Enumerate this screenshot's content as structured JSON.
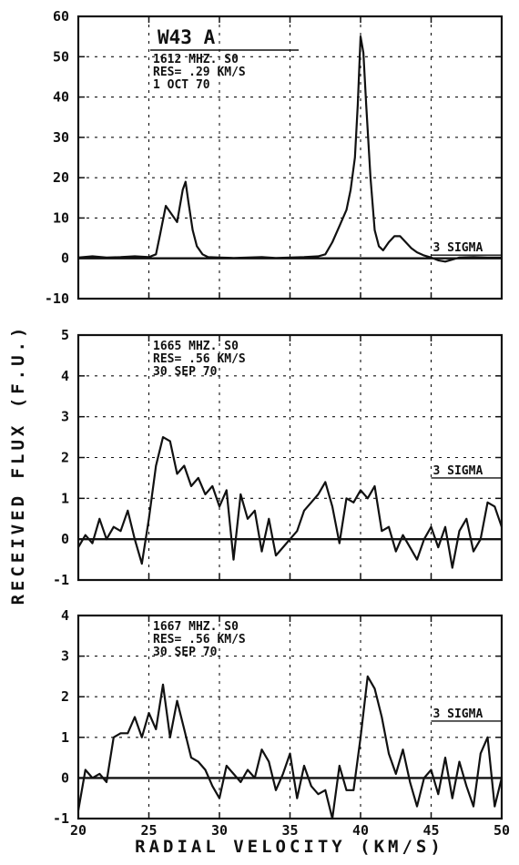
{
  "chart_data": [
    {
      "type": "line",
      "xlim": [
        20,
        50
      ],
      "ylim": [
        -10,
        60
      ],
      "yticks": [
        -10,
        0,
        10,
        20,
        30,
        40,
        50,
        60
      ],
      "xticks": [
        20,
        25,
        30,
        35,
        40,
        45,
        50
      ],
      "object_label": "W43 A",
      "annotation": [
        "1612 MHZ. S0",
        "RES= .29 KM/S",
        "1 OCT 70"
      ],
      "sigma_label": "3 SIGMA",
      "sigma_value": 0.8,
      "grid": true,
      "x": [
        20,
        21,
        22,
        23,
        24,
        25,
        25.5,
        25.8,
        26.2,
        26.6,
        27,
        27.4,
        27.6,
        27.8,
        28.1,
        28.4,
        28.8,
        29.2,
        30,
        31,
        32,
        33,
        34,
        35,
        36,
        37,
        37.5,
        38,
        38.5,
        39,
        39.3,
        39.6,
        39.8,
        40,
        40.2,
        40.4,
        40.7,
        41,
        41.3,
        41.6,
        42,
        42.4,
        42.8,
        43.2,
        43.6,
        44,
        44.5,
        45,
        45.5,
        46,
        47,
        48,
        49,
        50
      ],
      "y": [
        0.2,
        0.5,
        0.2,
        0.3,
        0.5,
        0.3,
        1,
        6,
        13,
        11,
        9,
        17,
        19,
        14,
        7,
        3,
        1,
        0.3,
        0.2,
        0.1,
        0.2,
        0.3,
        0.1,
        0.2,
        0.3,
        0.5,
        1,
        4,
        8,
        12,
        17,
        25,
        38,
        55,
        51,
        38,
        20,
        7,
        3,
        2,
        4,
        5.5,
        5.5,
        4,
        2.5,
        1.5,
        0.7,
        0.2,
        -0.5,
        -0.8,
        0.2,
        0.3,
        0.2,
        0.2
      ]
    },
    {
      "type": "line",
      "xlim": [
        20,
        50
      ],
      "ylim": [
        -1,
        5
      ],
      "yticks": [
        -1,
        0,
        1,
        2,
        3,
        4,
        5
      ],
      "xticks": [
        20,
        25,
        30,
        35,
        40,
        45,
        50
      ],
      "annotation": [
        "1665 MHZ. S0",
        "RES= .56 KM/S",
        "30 SEP 70"
      ],
      "sigma_label": "3 SIGMA",
      "sigma_value": 1.5,
      "grid": true,
      "x": [
        20,
        20.5,
        21,
        21.5,
        22,
        22.5,
        23,
        23.5,
        24,
        24.5,
        25,
        25.5,
        26,
        26.5,
        27,
        27.5,
        28,
        28.5,
        29,
        29.5,
        30,
        30.5,
        31,
        31.5,
        32,
        32.5,
        33,
        33.5,
        34,
        34.5,
        35,
        35.5,
        36,
        36.5,
        37,
        37.5,
        38,
        38.5,
        39,
        39.5,
        40,
        40.5,
        41,
        41.5,
        42,
        42.5,
        43,
        43.5,
        44,
        44.5,
        45,
        45.5,
        46,
        46.5,
        47,
        47.5,
        48,
        48.5,
        49,
        49.5,
        50
      ],
      "y": [
        -0.2,
        0.1,
        -0.1,
        0.5,
        0.0,
        0.3,
        0.2,
        0.7,
        0.0,
        -0.6,
        0.5,
        1.8,
        2.5,
        2.4,
        1.6,
        1.8,
        1.3,
        1.5,
        1.1,
        1.3,
        0.8,
        1.2,
        -0.5,
        1.1,
        0.5,
        0.7,
        -0.3,
        0.5,
        -0.4,
        -0.2,
        0.0,
        0.2,
        0.7,
        0.9,
        1.1,
        1.4,
        0.8,
        -0.1,
        1.0,
        0.9,
        1.2,
        1.0,
        1.3,
        0.2,
        0.3,
        -0.3,
        0.1,
        -0.2,
        -0.5,
        0.0,
        0.3,
        -0.2,
        0.3,
        -0.7,
        0.2,
        0.5,
        -0.3,
        0.0,
        0.9,
        0.8,
        0.3
      ]
    },
    {
      "type": "line",
      "xlim": [
        20,
        50
      ],
      "ylim": [
        -1,
        4
      ],
      "yticks": [
        -1,
        0,
        1,
        2,
        3,
        4
      ],
      "xticks": [
        20,
        25,
        30,
        35,
        40,
        45,
        50
      ],
      "xtick_labels": [
        "20",
        "25",
        "30",
        "35",
        "40",
        "45",
        "50"
      ],
      "annotation": [
        "1667 MHZ. S0",
        "RES= .56 KM/S",
        "30 SEP 70"
      ],
      "sigma_label": "3 SIGMA",
      "sigma_value": 1.4,
      "grid": true,
      "x": [
        20,
        20.5,
        21,
        21.5,
        22,
        22.5,
        23,
        23.5,
        24,
        24.5,
        25,
        25.5,
        26,
        26.5,
        27,
        27.5,
        28,
        28.5,
        29,
        29.5,
        30,
        30.5,
        31,
        31.5,
        32,
        32.5,
        33,
        33.5,
        34,
        34.5,
        35,
        35.5,
        36,
        36.5,
        37,
        37.5,
        38,
        38.5,
        39,
        39.5,
        40,
        40.5,
        41,
        41.5,
        42,
        42.5,
        43,
        43.5,
        44,
        44.5,
        45,
        45.5,
        46,
        46.5,
        47,
        47.5,
        48,
        48.5,
        49,
        49.5,
        50
      ],
      "y": [
        -0.8,
        0.2,
        0.0,
        0.1,
        -0.1,
        1.0,
        1.1,
        1.1,
        1.5,
        1.0,
        1.6,
        1.2,
        2.3,
        1.0,
        1.9,
        1.2,
        0.5,
        0.4,
        0.2,
        -0.2,
        -0.5,
        0.3,
        0.1,
        -0.1,
        0.2,
        0.0,
        0.7,
        0.4,
        -0.3,
        0.1,
        0.6,
        -0.5,
        0.3,
        -0.2,
        -0.4,
        -0.3,
        -1.0,
        0.3,
        -0.3,
        -0.3,
        1.0,
        2.5,
        2.2,
        1.5,
        0.6,
        0.1,
        0.7,
        -0.1,
        -0.7,
        0.0,
        0.2,
        -0.4,
        0.5,
        -0.5,
        0.4,
        -0.2,
        -0.7,
        0.6,
        1.0,
        -0.7,
        0.0
      ]
    }
  ],
  "axes": {
    "ylabel": "RECEIVED FLUX (F.U.)",
    "xlabel": "RADIAL VELOCITY (KM/S)"
  }
}
